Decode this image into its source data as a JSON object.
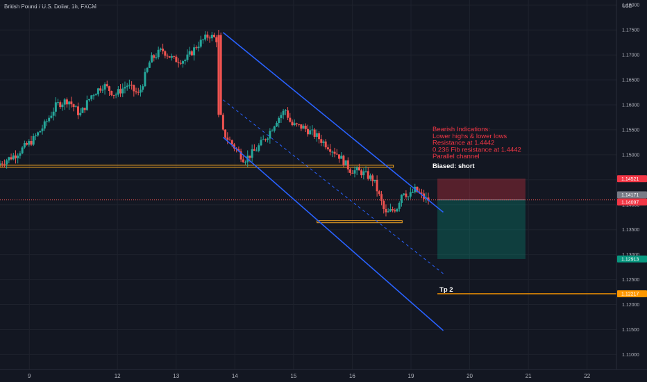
{
  "header": {
    "title": "British Pound / U.S. Dollar, 1h, FXCM",
    "currency": "USD"
  },
  "colors": {
    "background": "#131722",
    "grid": "#1e222d",
    "up": "#26a69a",
    "down": "#ef5350",
    "channel": "#2962ff",
    "hline": "#f5a623",
    "short_risk": "#f23645",
    "short_target": "#089981",
    "tp_line": "#ff9800",
    "text_red": "#f23645"
  },
  "chart_data": {
    "type": "candlestick",
    "title": "British Pound / U.S. Dollar, 1h, FXCM",
    "y_axis": {
      "unit": "USD",
      "range": [
        1.107,
        1.181
      ],
      "ticks": [
        "1.18000",
        "1.17500",
        "1.17000",
        "1.16500",
        "1.16000",
        "1.15500",
        "1.15000",
        "1.14500",
        "1.14000",
        "1.13500",
        "1.13000",
        "1.12500",
        "1.12000",
        "1.11500",
        "1.11000"
      ],
      "grid": true
    },
    "x_axis": {
      "ticks": [
        "9",
        "12",
        "13",
        "14",
        "15",
        "16",
        "19",
        "20",
        "21",
        "22"
      ],
      "tick_positions": [
        0.5,
        2,
        3,
        4,
        5,
        6,
        7,
        8,
        9,
        10
      ],
      "range": [
        0,
        10.5
      ],
      "grid": true
    },
    "price_path": [
      [
        0.0,
        1.148
      ],
      [
        0.3,
        1.15
      ],
      [
        0.6,
        1.153
      ],
      [
        0.8,
        1.156
      ],
      [
        1.0,
        1.16
      ],
      [
        1.2,
        1.161
      ],
      [
        1.4,
        1.158
      ],
      [
        1.6,
        1.162
      ],
      [
        1.8,
        1.164
      ],
      [
        2.0,
        1.162
      ],
      [
        2.2,
        1.164
      ],
      [
        2.4,
        1.162
      ],
      [
        2.6,
        1.169
      ],
      [
        2.8,
        1.171
      ],
      [
        3.0,
        1.169
      ],
      [
        3.2,
        1.169
      ],
      [
        3.4,
        1.172
      ],
      [
        3.6,
        1.174
      ],
      [
        3.74,
        1.173
      ],
      [
        3.76,
        1.16
      ],
      [
        3.8,
        1.155
      ],
      [
        4.0,
        1.152
      ],
      [
        4.2,
        1.149
      ],
      [
        4.4,
        1.151
      ],
      [
        4.6,
        1.154
      ],
      [
        4.75,
        1.157
      ],
      [
        4.9,
        1.159
      ],
      [
        5.0,
        1.156
      ],
      [
        5.2,
        1.1555
      ],
      [
        5.4,
        1.154
      ],
      [
        5.6,
        1.152
      ],
      [
        5.8,
        1.15
      ],
      [
        6.0,
        1.147
      ],
      [
        6.2,
        1.1465
      ],
      [
        6.4,
        1.145
      ],
      [
        6.55,
        1.14
      ],
      [
        6.6,
        1.138
      ],
      [
        6.8,
        1.1395
      ],
      [
        6.9,
        1.143
      ],
      [
        7.0,
        1.1415
      ],
      [
        7.1,
        1.143
      ],
      [
        7.2,
        1.142
      ],
      [
        7.3,
        1.141
      ]
    ],
    "channel": {
      "upper": [
        [
          3.8,
          1.1745
        ],
        [
          7.55,
          1.1385
        ]
      ],
      "middle": [
        [
          3.8,
          1.161
        ],
        [
          7.55,
          1.1262
        ]
      ],
      "lower": [
        [
          3.8,
          1.1535
        ],
        [
          7.55,
          1.1148
        ]
      ]
    },
    "horizontal_levels": [
      {
        "value": 1.1477,
        "x_from": 0,
        "x_to": 6.7
      },
      {
        "value": 1.1366,
        "x_from": 5.4,
        "x_to": 6.85
      }
    ],
    "short_position": {
      "entry": 1.14097,
      "stop": 1.14521,
      "target": 1.12913,
      "x_from": 7.45,
      "x_to": 8.95
    },
    "tp_line": {
      "label": "Tp 2",
      "value": 1.12217
    },
    "current_price": 1.14097,
    "price_labels": [
      {
        "value": "1.14521",
        "price": 1.14521,
        "color": "#f23645"
      },
      {
        "value": "1.14171",
        "price": 1.14171,
        "color": "#787b86"
      },
      {
        "value": "1.14097",
        "price": 1.14097,
        "color": "#f23645"
      },
      {
        "value": "1.12913",
        "price": 1.12913,
        "color": "#089981"
      },
      {
        "value": "1.12217",
        "price": 1.12217,
        "color": "#ff9800"
      }
    ],
    "annotations": {
      "bearish_lines": [
        "Bearish Indications:",
        "Lower highs & lower lows",
        "Resistance at 1.4442",
        "0.236 Fib resistance at 1.4442",
        "Parallel channel"
      ],
      "bias": "Biased: short"
    }
  }
}
